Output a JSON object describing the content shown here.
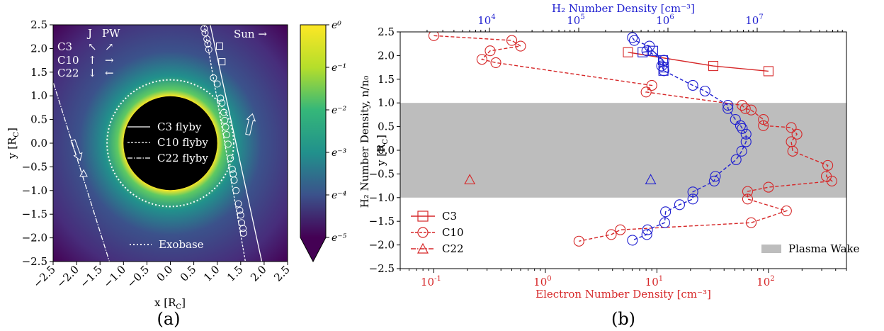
{
  "chart_data": [
    {
      "panel": "(a)",
      "type": "heatmap",
      "xlabel": "x [R",
      "xlabel_sub": "C",
      "xlabel_end": "]",
      "ylabel": "y [R",
      "ylabel_sub": "C",
      "ylabel_end": "]",
      "xlim": [
        -2.5,
        2.5
      ],
      "ylim": [
        -2.5,
        2.5
      ],
      "xticks": [
        "−2.5",
        "−2.0",
        "−1.5",
        "−1.0",
        "−0.5",
        "0.0",
        "0.5",
        "1.0",
        "1.5",
        "2.0",
        "2.5"
      ],
      "yticks": [
        "2.5",
        "2.0",
        "1.5",
        "1.0",
        "0.5",
        "0.0",
        "−0.5",
        "−1.0",
        "−1.5",
        "−2.0",
        "−2.5"
      ],
      "colorbar": {
        "label": "H₂ Number Density, n/n₀",
        "ticks": [
          "e⁰",
          "e⁻¹",
          "e⁻²",
          "e⁻³",
          "e⁻⁴",
          "e⁻⁵"
        ],
        "colors": [
          "#fde725",
          "#5ec962",
          "#21918c",
          "#3b528b",
          "#440154"
        ]
      },
      "body_radius": 1.0,
      "exobase_radius": 1.35,
      "legend": [
        "C3 flyby",
        "C10 flyby",
        "C22 flyby"
      ],
      "exobase_label": "Exobase",
      "sun_label": "Sun →",
      "jpw_header": [
        "J",
        "PW"
      ],
      "jpw_rows": [
        {
          "name": "C3",
          "j": "↖",
          "pw": "↗"
        },
        {
          "name": "C10",
          "j": "↑",
          "pw": "→"
        },
        {
          "name": "C22",
          "j": "↓",
          "pw": "←"
        }
      ],
      "tracks": {
        "C3": [
          [
            0.85,
            2.5
          ],
          [
            1.95,
            -2.5
          ]
        ],
        "C10": [
          [
            0.72,
            2.5
          ],
          [
            1.6,
            -2.5
          ]
        ],
        "C22": [
          [
            -2.55,
            1.45
          ],
          [
            -1.3,
            -2.5
          ]
        ]
      },
      "c3_markers": [
        [
          1.05,
          2.05
        ],
        [
          1.1,
          1.72
        ]
      ],
      "c10_markers": [
        [
          0.72,
          2.42
        ],
        [
          0.74,
          2.33
        ],
        [
          0.78,
          2.2
        ],
        [
          0.8,
          2.1
        ],
        [
          0.82,
          1.98
        ],
        [
          0.92,
          1.38
        ],
        [
          1.0,
          1.25
        ],
        [
          1.07,
          0.95
        ],
        [
          1.1,
          0.85
        ],
        [
          1.14,
          0.65
        ],
        [
          1.16,
          0.48
        ],
        [
          1.18,
          0.34
        ],
        [
          1.2,
          0.18
        ],
        [
          1.23,
          -0.02
        ],
        [
          1.28,
          -0.32
        ],
        [
          1.32,
          -0.55
        ],
        [
          1.34,
          -0.65
        ],
        [
          1.36,
          -0.78
        ],
        [
          1.4,
          -1.0
        ],
        [
          1.45,
          -1.28
        ],
        [
          1.48,
          -1.42
        ],
        [
          1.5,
          -1.52
        ],
        [
          1.52,
          -1.68
        ],
        [
          1.55,
          -1.8
        ],
        [
          1.56,
          -1.9
        ]
      ],
      "c22_markers": [
        [
          -1.85,
          -0.64
        ]
      ],
      "arrows_left": [
        [
          -2.0,
          -0.15
        ],
        [
          -2.1,
          0.1
        ]
      ],
      "arrows_right": [
        [
          1.75,
          -0.1
        ],
        [
          1.7,
          0.4
        ]
      ]
    },
    {
      "panel": "(b)",
      "type": "line",
      "xlabel": "Electron Number Density [cm⁻³]",
      "top_xlabel": "H₂ Number Density [cm⁻³]",
      "ylabel": "y [R",
      "ylabel_sub": "C",
      "ylabel_end": "]",
      "x_scale": "log",
      "ylim": [
        -2.5,
        2.5
      ],
      "bottom_xlim": [
        0.05,
        500
      ],
      "top_xlim": [
        1000,
        100000000
      ],
      "bottom_ticks": [
        {
          "v": 0.1,
          "label": "10",
          "exp": "-1"
        },
        {
          "v": 1,
          "label": "10",
          "exp": "0"
        },
        {
          "v": 10,
          "label": "10",
          "exp": "1"
        },
        {
          "v": 100,
          "label": "10",
          "exp": "2"
        }
      ],
      "top_ticks": [
        {
          "v": 10000,
          "label": "10",
          "exp": "4"
        },
        {
          "v": 100000,
          "label": "10",
          "exp": "5"
        },
        {
          "v": 1000000,
          "label": "10",
          "exp": "6"
        },
        {
          "v": 10000000,
          "label": "10",
          "exp": "7"
        }
      ],
      "yticks": [
        "2.5",
        "2.0",
        "1.5",
        "1.0",
        "0.5",
        "0.0",
        "−0.5",
        "−1.0",
        "−1.5",
        "−2.0",
        "−2.5"
      ],
      "wake": {
        "y_range": [
          -1.0,
          1.0
        ],
        "label": "Plasma Wake"
      },
      "colors": {
        "electron": "#d62728",
        "h2": "#1f1fd0",
        "wake": "#bdbdbd"
      },
      "series": [
        {
          "name": "C3",
          "axis": "electron",
          "marker": "square",
          "line": "solid",
          "points": [
            [
              5.5,
              2.07
            ],
            [
              32,
              1.78
            ],
            [
              100,
              1.67
            ]
          ]
        },
        {
          "name": "C10",
          "axis": "electron",
          "marker": "circle",
          "line": "dashed",
          "points": [
            [
              0.1,
              2.42
            ],
            [
              0.5,
              2.32
            ],
            [
              0.6,
              2.2
            ],
            [
              0.32,
              2.1
            ],
            [
              0.27,
              1.92
            ],
            [
              0.36,
              1.85
            ],
            [
              9,
              1.37
            ],
            [
              8,
              1.23
            ],
            [
              58,
              0.95
            ],
            [
              62,
              0.88
            ],
            [
              70,
              0.85
            ],
            [
              90,
              0.65
            ],
            [
              90,
              0.52
            ],
            [
              160,
              0.48
            ],
            [
              180,
              0.34
            ],
            [
              160,
              0.18
            ],
            [
              165,
              -0.02
            ],
            [
              340,
              -0.32
            ],
            [
              330,
              -0.55
            ],
            [
              370,
              -0.65
            ],
            [
              100,
              -0.78
            ],
            [
              65,
              -0.87
            ],
            [
              65,
              -1.03
            ],
            [
              145,
              -1.28
            ],
            [
              70,
              -1.53
            ],
            [
              4.7,
              -1.68
            ],
            [
              3.9,
              -1.78
            ],
            [
              2.0,
              -1.92
            ]
          ]
        },
        {
          "name": "C22",
          "axis": "electron",
          "marker": "triangle",
          "line": "dashdot",
          "points": [
            [
              0.21,
              -0.62
            ]
          ]
        },
        {
          "name": "C3",
          "axis": "h2",
          "marker": "square",
          "line": "solid",
          "legend": false,
          "points": [
            [
              520000,
              2.07
            ],
            [
              680000,
              2.1
            ],
            [
              880000,
              1.9
            ],
            [
              900000,
              1.75
            ],
            [
              890000,
              1.68
            ]
          ]
        },
        {
          "name": "C10",
          "axis": "h2",
          "marker": "circle",
          "line": "dashed",
          "legend": false,
          "points": [
            [
              400000,
              2.38
            ],
            [
              420000,
              2.32
            ],
            [
              620000,
              2.2
            ],
            [
              580000,
              2.1
            ],
            [
              900000,
              1.9
            ],
            [
              850000,
              1.78
            ],
            [
              900000,
              1.68
            ],
            [
              1900000,
              1.37
            ],
            [
              2600000,
              1.25
            ],
            [
              4700000,
              0.95
            ],
            [
              4700000,
              0.88
            ],
            [
              5700000,
              0.65
            ],
            [
              6500000,
              0.52
            ],
            [
              6800000,
              0.46
            ],
            [
              7500000,
              0.34
            ],
            [
              7500000,
              0.18
            ],
            [
              6700000,
              -0.02
            ],
            [
              5800000,
              -0.2
            ],
            [
              3400000,
              -0.55
            ],
            [
              3300000,
              -0.65
            ],
            [
              1900000,
              -0.88
            ],
            [
              1900000,
              -1.03
            ],
            [
              1350000,
              -1.15
            ],
            [
              940000,
              -1.3
            ],
            [
              920000,
              -1.53
            ],
            [
              590000,
              -1.68
            ],
            [
              580000,
              -1.78
            ],
            [
              400000,
              -1.9
            ]
          ]
        },
        {
          "name": "C22",
          "axis": "h2",
          "marker": "triangle",
          "line": "dashdot",
          "legend": false,
          "points": [
            [
              640000,
              -0.62
            ]
          ]
        }
      ],
      "legend_labels": [
        "C3",
        "C10",
        "C22"
      ]
    }
  ]
}
